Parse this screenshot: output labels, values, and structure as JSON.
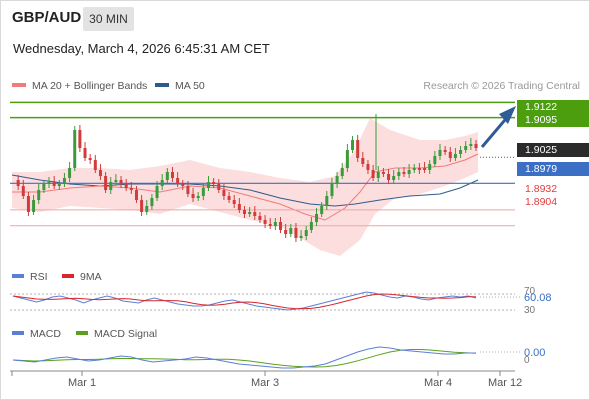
{
  "header": {
    "symbol": "GBP/AUD",
    "timeframe": "30 MIN",
    "datetime": "Wednesday, March 4, 2026 6:45:31 AM CET"
  },
  "legend": {
    "ma20_label": "MA 20 + Bollinger Bands",
    "ma50_label": "MA 50",
    "ma20_color": "#f07b7b",
    "ma50_color": "#2e5b8c"
  },
  "credit": "Research © 2026 Trading Central",
  "price_levels": [
    {
      "value": "1.9122",
      "style": "green"
    },
    {
      "value": "1.9095",
      "style": "green"
    },
    {
      "value": "1.9025",
      "style": "current"
    },
    {
      "value": "1.8979",
      "style": "blue"
    },
    {
      "value": "1.8932",
      "style": "red"
    },
    {
      "value": "1.8904",
      "style": "red"
    }
  ],
  "rsi_panel": {
    "rsi_label": "RSI",
    "signal_label": "9MA",
    "rsi_color": "#5b7fd6",
    "signal_color": "#d9262c",
    "upper_level": "70",
    "lower_level": "30",
    "value": "60.08"
  },
  "macd_panel": {
    "macd_label": "MACD",
    "signal_label": "MACD Signal",
    "macd_color": "#5b7fd6",
    "signal_color": "#5aa01e",
    "value": "0.00",
    "zero_label": "0"
  },
  "x_axis": {
    "labels": [
      "Mar 1",
      "Mar 3",
      "Mar 4",
      "Mar 12"
    ]
  },
  "colors": {
    "green": "#4c9e0f",
    "current": "#2b2b2b",
    "blue": "#3a6fc4",
    "red": "#e23b3b",
    "arrow": "#2f5c96",
    "bollinger": "#fbd3d3"
  },
  "chart_data": {
    "type": "candlestick",
    "title": "GBP/AUD",
    "timeframe": "30 MIN",
    "x_ticks": [
      "Mar 1",
      "Mar 3",
      "Mar 4",
      "Mar 12"
    ],
    "ylim": [
      1.884,
      1.9135
    ],
    "levels": {
      "resistance": [
        1.9122,
        1.9095
      ],
      "last": 1.9025,
      "pivot": 1.8979,
      "support": [
        1.8932,
        1.8904
      ]
    },
    "rsi": {
      "value": 60.08,
      "levels": [
        30,
        70
      ]
    },
    "macd": {
      "value": 0.0
    }
  }
}
